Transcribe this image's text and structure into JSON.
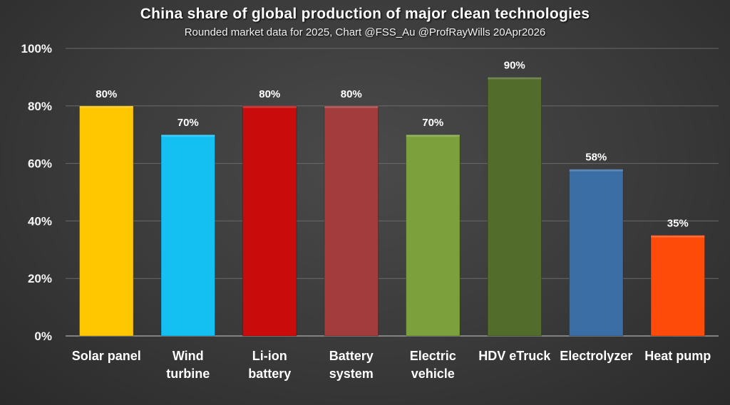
{
  "chart_data": {
    "type": "bar",
    "title": "China share of global production of major clean technologies",
    "subtitle": "Rounded market data for 2025, Chart @FSS_Au @ProfRayWills 20Apr2026",
    "categories": [
      [
        "Solar panel"
      ],
      [
        "Wind",
        "turbine"
      ],
      [
        "Li-ion",
        "battery"
      ],
      [
        "Battery",
        "system"
      ],
      [
        "Electric",
        "vehicle"
      ],
      [
        "HDV eTruck"
      ],
      [
        "Electrolyzer"
      ],
      [
        "Heat pump"
      ]
    ],
    "values": [
      80,
      70,
      80,
      80,
      70,
      90,
      58,
      35
    ],
    "data_labels": [
      "80%",
      "70%",
      "80%",
      "80%",
      "70%",
      "90%",
      "58%",
      "35%"
    ],
    "colors": [
      "#ffc700",
      "#14bff2",
      "#c90b0b",
      "#a33c3c",
      "#7ca03c",
      "#526c2c",
      "#3c6ea6",
      "#ff4b0a"
    ],
    "ylim": [
      0,
      100
    ],
    "yticks": [
      0,
      20,
      40,
      60,
      80,
      100
    ],
    "ytick_labels": [
      "0%",
      "20%",
      "40%",
      "60%",
      "80%",
      "100%"
    ],
    "xlabel": "",
    "ylabel": "",
    "grid": true,
    "legend": "none"
  }
}
